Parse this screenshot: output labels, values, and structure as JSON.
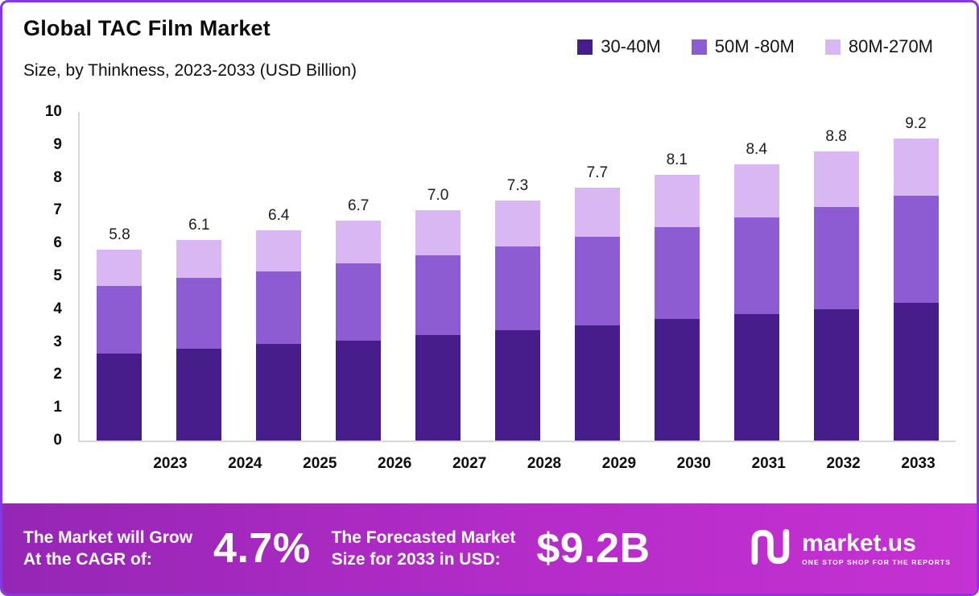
{
  "title": "Global TAC Film Market",
  "subtitle": "Size, by Thinkness, 2023-2033 (USD Billion)",
  "legend": [
    {
      "label": "30-40M",
      "color": "#471d8c"
    },
    {
      "label": "50M -80M",
      "color": "#8d5bd2"
    },
    {
      "label": "80M-270M",
      "color": "#d9b7f3"
    }
  ],
  "chart_data": {
    "type": "bar",
    "stacked": true,
    "title": "Global TAC Film Market Size, by Thinkness, 2023-2033 (USD Billion)",
    "categories": [
      "2023",
      "2024",
      "2025",
      "2026",
      "2027",
      "2028",
      "2029",
      "2030",
      "2031",
      "2032",
      "2033"
    ],
    "series": [
      {
        "name": "30-40M",
        "color": "#471d8c",
        "values": [
          2.65,
          2.8,
          2.95,
          3.05,
          3.2,
          3.35,
          3.5,
          3.7,
          3.85,
          4.0,
          4.2
        ]
      },
      {
        "name": "50M -80M",
        "color": "#8d5bd2",
        "values": [
          2.05,
          2.15,
          2.2,
          2.35,
          2.45,
          2.55,
          2.7,
          2.8,
          2.95,
          3.1,
          3.25
        ]
      },
      {
        "name": "80M-270M",
        "color": "#d9b7f3",
        "values": [
          1.1,
          1.15,
          1.25,
          1.3,
          1.35,
          1.4,
          1.5,
          1.6,
          1.6,
          1.7,
          1.75
        ]
      }
    ],
    "totals": [
      "5.8",
      "6.1",
      "6.4",
      "6.7",
      "7.0",
      "7.3",
      "7.7",
      "8.1",
      "8.4",
      "8.8",
      "9.2"
    ],
    "ylim": [
      0,
      10
    ],
    "yticks": [
      0,
      1,
      2,
      3,
      4,
      5,
      6,
      7,
      8,
      9,
      10
    ],
    "grid": false,
    "legend_position": "top-right"
  },
  "banner": {
    "cagr_label_line1": "The Market will Grow",
    "cagr_label_line2": "At the CAGR of:",
    "cagr_value": "4.7%",
    "forecast_label_line1": "The Forecasted Market",
    "forecast_label_line2": "Size for 2033 in USD:",
    "forecast_value": "$9.2B",
    "brand": "market.us",
    "brand_tagline": "ONE STOP SHOP FOR THE REPORTS"
  }
}
